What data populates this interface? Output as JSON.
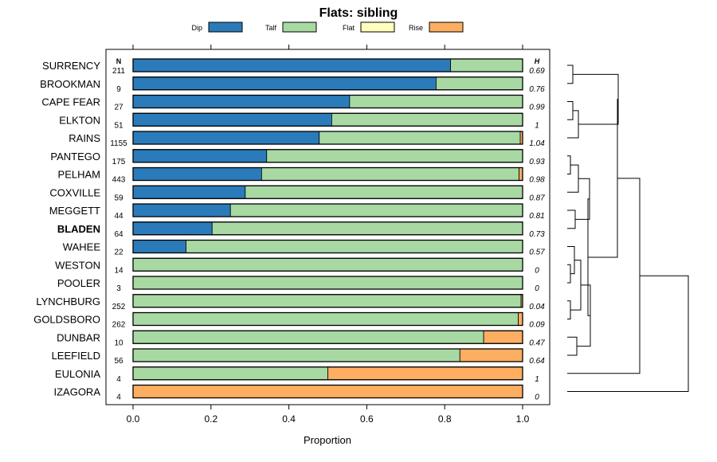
{
  "chart_data": {
    "type": "bar",
    "stacked": true,
    "orientation": "horizontal",
    "title": "Flats: sibling",
    "xlabel": "Proportion",
    "xlim": [
      0,
      1
    ],
    "xticks": [
      0.0,
      0.2,
      0.4,
      0.6,
      0.8,
      1.0
    ],
    "xtick_labels": [
      "0.0",
      "0.2",
      "0.4",
      "0.6",
      "0.8",
      "1.0"
    ],
    "n_header": "N",
    "h_header": "H",
    "highlight": "BLADEN",
    "legend": [
      {
        "name": "Dip",
        "color": "#2b7bba"
      },
      {
        "name": "Talf",
        "color": "#a8d9a3"
      },
      {
        "name": "Flat",
        "color": "#ffffbf"
      },
      {
        "name": "Rise",
        "color": "#fdae61"
      }
    ],
    "series_order": [
      "Dip",
      "Talf",
      "Flat",
      "Rise"
    ],
    "categories": [
      "SURRENCY",
      "BROOKMAN",
      "CAPE FEAR",
      "ELKTON",
      "RAINS",
      "PANTEGO",
      "PELHAM",
      "COXVILLE",
      "MEGGETT",
      "BLADEN",
      "WAHEE",
      "WESTON",
      "POOLER",
      "LYNCHBURG",
      "GOLDSBORO",
      "DUNBAR",
      "LEEFIELD",
      "EULONIA",
      "IZAGORA"
    ],
    "N": [
      "211",
      "9",
      "27",
      "51",
      "1155",
      "175",
      "443",
      "59",
      "44",
      "64",
      "22",
      "14",
      "3",
      "252",
      "262",
      "10",
      "56",
      "4",
      "4"
    ],
    "H": [
      "0.69",
      "0.76",
      "0.99",
      "1",
      "1.04",
      "0.93",
      "0.98",
      "0.87",
      "0.81",
      "0.73",
      "0.57",
      "0",
      "0",
      "0.04",
      "0.09",
      "0.47",
      "0.64",
      "1",
      "0"
    ],
    "series": [
      {
        "name": "Dip",
        "values": [
          0.815,
          0.778,
          0.556,
          0.51,
          0.478,
          0.343,
          0.33,
          0.288,
          0.25,
          0.203,
          0.136,
          0,
          0,
          0,
          0,
          0,
          0,
          0,
          0
        ]
      },
      {
        "name": "Talf",
        "values": [
          0.185,
          0.222,
          0.444,
          0.49,
          0.516,
          0.657,
          0.661,
          0.712,
          0.75,
          0.797,
          0.864,
          1,
          1,
          0.996,
          0.989,
          0.9,
          0.839,
          0.5,
          0
        ]
      },
      {
        "name": "Flat",
        "values": [
          0,
          0,
          0,
          0,
          0,
          0,
          0,
          0,
          0,
          0,
          0,
          0,
          0,
          0,
          0,
          0,
          0,
          0,
          0
        ]
      },
      {
        "name": "Rise",
        "values": [
          0,
          0,
          0,
          0,
          0.006,
          0,
          0.009,
          0,
          0,
          0,
          0,
          0,
          0,
          0.004,
          0.011,
          0.1,
          0.161,
          0.5,
          1
        ]
      }
    ],
    "dendrogram": "hierarchical clustering tree of the 19 sites (right side)"
  }
}
